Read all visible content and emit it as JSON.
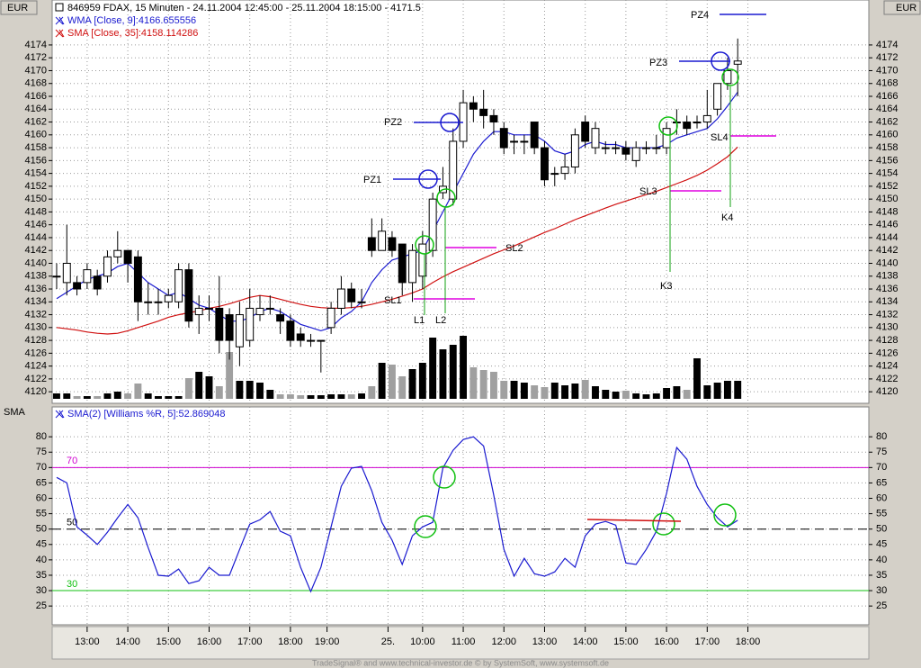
{
  "header": {
    "footer": "TradeSignal® and www.technical-investor.de © by SystemSoft, www.systemsoft.de"
  },
  "chart_data": [
    {
      "type": "candlestick",
      "title": "846959 FDAX, 15 Minuten - 24.11.2004 12:45:00 - 25.11.2004 18:15:00 - 4171.5",
      "unit": "EUR",
      "xlim": [
        -0.44,
        79.9
      ],
      "ylim": [
        4118.2,
        4181.0
      ],
      "yticks": [
        4120,
        4122,
        4124,
        4126,
        4128,
        4130,
        4132,
        4134,
        4136,
        4138,
        4140,
        4142,
        4144,
        4146,
        4148,
        4150,
        4152,
        4154,
        4156,
        4158,
        4160,
        4162,
        4164,
        4166,
        4168,
        4170,
        4172,
        4174
      ],
      "grid": true,
      "up_color": "#ffffff",
      "down_color": "#000000",
      "open": [
        4138,
        4137,
        4137,
        4137,
        4138,
        4138,
        4141,
        4142,
        4141,
        4134,
        4134,
        4134,
        4134,
        4139,
        4132,
        4133,
        4133,
        4132,
        4127,
        4128,
        4132,
        4133,
        4132,
        4131,
        4129,
        4128,
        4128,
        4130,
        4133,
        4136,
        4134,
        4144,
        4142,
        4144,
        4143,
        4137,
        4138,
        4142,
        4151,
        4150,
        4159,
        4165,
        4164,
        4163,
        4161,
        4159,
        4159,
        4162,
        4158,
        4154,
        4154,
        4155,
        4162,
        4158,
        4158,
        4158,
        4158,
        4156,
        4158,
        4158,
        4158,
        4162,
        4162,
        4162,
        4162,
        4164,
        4168,
        4171
      ],
      "high": [
        4140,
        4146,
        4138,
        4140,
        4139,
        4142,
        4145,
        4142,
        4142,
        4137,
        4136,
        4136,
        4140,
        4140,
        4135,
        4135,
        4138,
        4133,
        4134,
        4136,
        4135,
        4135,
        4133,
        4132,
        4130,
        4129,
        4128,
        4134,
        4138,
        4137,
        4136,
        4147,
        4147,
        4145,
        4143,
        4143,
        4145,
        4151,
        4155,
        4161,
        4167,
        4166,
        4167,
        4164,
        4162,
        4160,
        4160,
        4162,
        4159,
        4155,
        4157,
        4161,
        4163,
        4162,
        4159,
        4159,
        4159,
        4159,
        4159,
        4160,
        4162,
        4164,
        4163,
        4163,
        4167,
        4168,
        4172,
        4175
      ],
      "low": [
        4136,
        4135,
        4135,
        4136,
        4135,
        4137,
        4140,
        4137,
        4131,
        4132,
        4132,
        4133,
        4133,
        4130,
        4129,
        4131,
        4126,
        4125,
        4124,
        4127,
        4131,
        4132,
        4129,
        4127,
        4127,
        4127,
        4123,
        4129,
        4132,
        4133,
        4133,
        4141,
        4142,
        4141,
        4135,
        4134,
        4136,
        4141,
        4150,
        4149,
        4158,
        4162,
        4161,
        4160,
        4157,
        4157,
        4157,
        4157,
        4152,
        4152,
        4153,
        4154,
        4158,
        4157,
        4157,
        4157,
        4156,
        4155,
        4157,
        4157,
        4157,
        4160,
        4160,
        4161,
        4161,
        4163,
        4167,
        4166
      ],
      "close": [
        4138,
        4140,
        4136,
        4139,
        4136,
        4141,
        4142,
        4140,
        4134,
        4134,
        4134,
        4135,
        4139,
        4131,
        4133,
        4133,
        4128,
        4128,
        4132,
        4133,
        4133,
        4133,
        4131,
        4128,
        4128,
        4128,
        4128,
        4133,
        4136,
        4134,
        4134,
        4142,
        4145,
        4142,
        4137,
        4142,
        4143,
        4150,
        4152,
        4159,
        4165,
        4164,
        4163,
        4162,
        4158,
        4159,
        4159,
        4158,
        4153,
        4154,
        4155,
        4160,
        4159,
        4161,
        4158,
        4158,
        4157,
        4158,
        4158,
        4158,
        4161,
        4162,
        4161,
        4162,
        4163,
        4168,
        4170,
        4171.5
      ],
      "volume": {
        "up_color": "#000000",
        "down_color": "#a0a0a0",
        "values": [
          6,
          6,
          3,
          3,
          3,
          6,
          8,
          6,
          17,
          6,
          3,
          3,
          3,
          23,
          30,
          25,
          14,
          52,
          20,
          20,
          18,
          10,
          5,
          5,
          4,
          4,
          4,
          5,
          5,
          5,
          6,
          14,
          40,
          38,
          25,
          33,
          40,
          68,
          55,
          60,
          70,
          35,
          32,
          30,
          20,
          20,
          18,
          15,
          13,
          18,
          15,
          17,
          21,
          14,
          10,
          8,
          9,
          6,
          5,
          6,
          12,
          14,
          10,
          45,
          15,
          18,
          20,
          20
        ]
      },
      "series": [
        {
          "name": "WMA [Close, 9]:4166.655556",
          "color": "#1a1ad0",
          "values": [
            4134.5,
            4135.5,
            4136.5,
            4137.5,
            4138,
            4138.5,
            4139.5,
            4140,
            4138.5,
            4137,
            4136,
            4135,
            4135.5,
            4134.5,
            4133.5,
            4133,
            4132,
            4131,
            4131,
            4131.5,
            4132.5,
            4133,
            4132.5,
            4131.5,
            4130.5,
            4130,
            4129.5,
            4130,
            4131.5,
            4132.5,
            4134,
            4137,
            4139,
            4140.5,
            4141,
            4141.5,
            4142,
            4145,
            4148,
            4151,
            4154,
            4157,
            4159,
            4160.5,
            4160.5,
            4160,
            4160,
            4160,
            4159,
            4157.5,
            4157,
            4157.5,
            4158.5,
            4159,
            4158.5,
            4158.5,
            4158,
            4158,
            4158,
            4158,
            4158.5,
            4159.5,
            4160,
            4160.5,
            4161,
            4162.5,
            4164.5,
            4166.655556
          ]
        },
        {
          "name": "SMA [Close, 35]:4158.114286",
          "color": "#d01010",
          "values": [
            4130,
            4129.8,
            4129.6,
            4129.3,
            4129.1,
            4129,
            4129.1,
            4129.5,
            4130,
            4130.5,
            4131,
            4131.6,
            4132,
            4132.3,
            4132.6,
            4133,
            4133.3,
            4133.7,
            4134.2,
            4134.7,
            4135,
            4134.8,
            4134.4,
            4134,
            4133.6,
            4133.3,
            4133.1,
            4133,
            4133,
            4133.1,
            4133.3,
            4133.6,
            4134,
            4134.4,
            4134.9,
            4135.4,
            4136,
            4137,
            4137.9,
            4138.7,
            4139.4,
            4140.1,
            4140.8,
            4141.5,
            4142.1,
            4142.7,
            4143.4,
            4144.1,
            4144.8,
            4145.4,
            4146.1,
            4146.8,
            4147.4,
            4148,
            4148.6,
            4149.2,
            4149.7,
            4150.2,
            4150.7,
            4151.2,
            4151.8,
            4152.4,
            4153,
            4153.7,
            4154.5,
            4155.5,
            4156.6,
            4158.114286
          ]
        }
      ],
      "annotations": [
        "PZ4",
        "PZ3",
        "PZ2",
        "PZ1",
        "SL1",
        "SL2",
        "SL3",
        "SL4",
        "L1",
        "L2",
        "K3",
        "K4"
      ]
    },
    {
      "type": "line",
      "panel_label": "SMA",
      "xlim": [
        -0.44,
        79.9
      ],
      "ylim": [
        18.9,
        89.7
      ],
      "yticks": [
        25,
        30,
        35,
        40,
        45,
        50,
        55,
        60,
        65,
        70,
        75,
        80
      ],
      "grid": true,
      "xticks": [
        {
          "value": 3,
          "label": "13:00"
        },
        {
          "value": 7,
          "label": "14:00"
        },
        {
          "value": 11,
          "label": "15:00"
        },
        {
          "value": 15,
          "label": "16:00"
        },
        {
          "value": 19,
          "label": "17:00"
        },
        {
          "value": 23,
          "label": "18:00"
        },
        {
          "value": 26.6,
          "label": "19:00"
        },
        {
          "value": 32.6,
          "label": "25."
        },
        {
          "value": 36,
          "label": "10:00"
        },
        {
          "value": 40,
          "label": "11:00"
        },
        {
          "value": 44,
          "label": "12:00"
        },
        {
          "value": 48,
          "label": "13:00"
        },
        {
          "value": 52,
          "label": "14:00"
        },
        {
          "value": 56,
          "label": "15:00"
        },
        {
          "value": 60,
          "label": "16:00"
        },
        {
          "value": 64,
          "label": "17:00"
        },
        {
          "value": 68,
          "label": "18:00"
        }
      ],
      "levels": [
        {
          "value": 70,
          "color": "#d000d0",
          "dash": "solid"
        },
        {
          "value": 50,
          "color": "#000000",
          "dash": "dashed"
        },
        {
          "value": 30,
          "color": "#10c010",
          "dash": "solid"
        }
      ],
      "series": [
        {
          "name": "SMA(2) [Williams %R, 5]:52.869048",
          "color": "#1a1ad0",
          "values": [
            66.8,
            65,
            50.7,
            48,
            45,
            49,
            53.7,
            58,
            53.7,
            44,
            35,
            34.7,
            37,
            32.3,
            33.2,
            37.6,
            35,
            35,
            43.4,
            51.6,
            53,
            55.7,
            49.3,
            47.8,
            37.6,
            29.7,
            37.6,
            50.7,
            63.9,
            69.8,
            70.4,
            62.5,
            52.2,
            46.4,
            38.5,
            47.8,
            50.7,
            52.2,
            69.8,
            75.6,
            79.1,
            80,
            77,
            61,
            43.4,
            34.7,
            40.5,
            35.5,
            34.7,
            36.1,
            40.5,
            37.6,
            47.8,
            51.6,
            52.5,
            51.3,
            39,
            38.5,
            43.4,
            49.3,
            61.6,
            76.5,
            72.7,
            63.9,
            58,
            53.7,
            50.7,
            52.869048
          ]
        }
      ]
    }
  ]
}
